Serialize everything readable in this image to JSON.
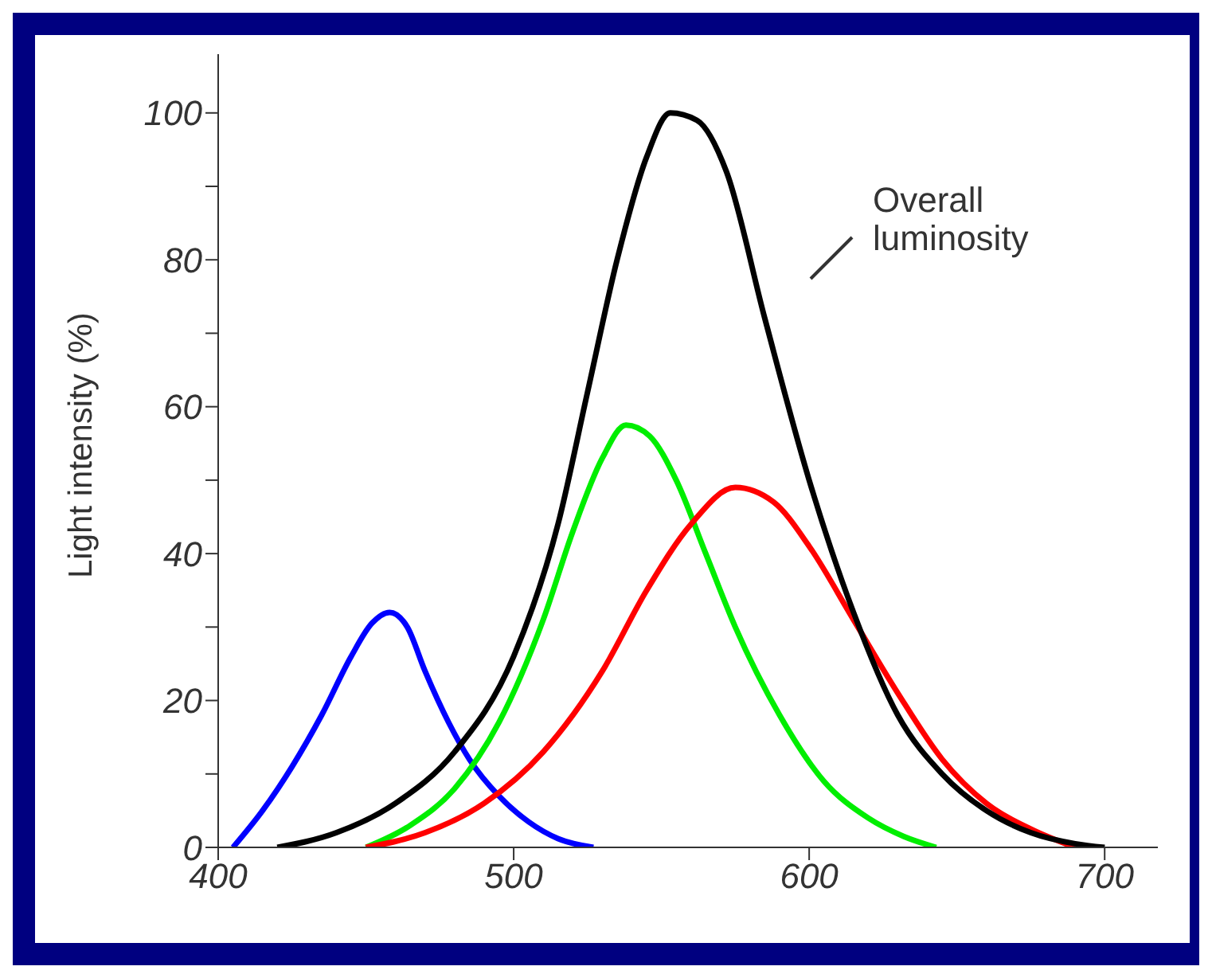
{
  "chart_data": {
    "type": "line",
    "ylabel": "Light intensity (%)",
    "xlim": [
      400,
      718
    ],
    "xticks": [
      400,
      500,
      600,
      700
    ],
    "ylim": [
      0,
      108
    ],
    "yticks": [
      0,
      {
        "value": 10,
        "label": null
      },
      20,
      {
        "value": 30,
        "label": null
      },
      40,
      {
        "value": 50,
        "label": null
      },
      60,
      {
        "value": 70,
        "label": null
      },
      80,
      {
        "value": 90,
        "label": null
      },
      100
    ],
    "grid": false,
    "marker": "none",
    "line_style": "solid",
    "annotations": [
      "Overall luminosity"
    ],
    "series": [
      {
        "color": "#0000ff",
        "x": [
          405,
          415,
          425,
          435,
          445,
          452,
          458,
          464,
          470,
          478,
          485,
          495,
          505,
          515,
          527
        ],
        "values": [
          0,
          5,
          11,
          18,
          26,
          30.5,
          32,
          30,
          24,
          17,
          12,
          7,
          3.5,
          1.2,
          0
        ]
      },
      {
        "color": "#00ee00",
        "x": [
          450,
          465,
          480,
          495,
          510,
          520,
          530,
          538,
          546,
          555,
          565,
          575,
          590,
          605,
          620,
          632,
          643
        ],
        "values": [
          0,
          3,
          8,
          17,
          31,
          43,
          53,
          57.5,
          56,
          50,
          40,
          30,
          18,
          9,
          4,
          1.5,
          0
        ]
      },
      {
        "color": "#ff0000",
        "x": [
          450,
          470,
          490,
          510,
          530,
          545,
          560,
          575,
          588,
          600,
          615,
          630,
          645,
          660,
          675,
          690
        ],
        "values": [
          0,
          2,
          6,
          13,
          24,
          35,
          44,
          49,
          47,
          41,
          31,
          21,
          12,
          6,
          2.5,
          0
        ]
      },
      {
        "color": "#000000",
        "x": [
          420,
          440,
          460,
          480,
          500,
          515,
          525,
          535,
          545,
          553,
          562,
          572,
          585,
          600,
          615,
          630,
          645,
          660,
          675,
          690,
          700
        ],
        "values": [
          0,
          2,
          6,
          13,
          26,
          44,
          62,
          80,
          94,
          100,
          99,
          92,
          72,
          50,
          32,
          18,
          10,
          5,
          2,
          0.5,
          0
        ]
      }
    ]
  }
}
